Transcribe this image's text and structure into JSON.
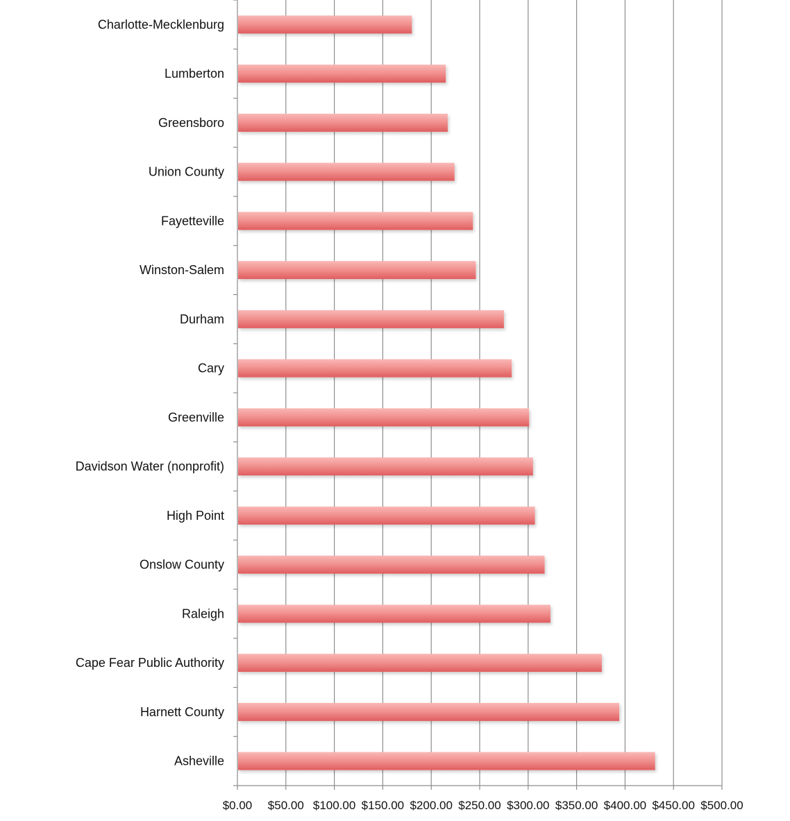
{
  "chart_data": {
    "type": "bar",
    "orientation": "horizontal",
    "categories": [
      "Charlotte-Mecklenburg",
      "Lumberton",
      "Greensboro",
      "Union County",
      "Fayetteville",
      "Winston-Salem",
      "Durham",
      "Cary",
      "Greenville",
      "Davidson Water (nonprofit)",
      "High Point",
      "Onslow County",
      "Raleigh",
      "Cape Fear Public Authority",
      "Harnett County",
      "Asheville"
    ],
    "values": [
      180,
      215,
      217,
      224,
      243,
      246,
      275,
      283,
      301,
      305,
      307,
      317,
      323,
      376,
      394,
      431
    ],
    "title": "",
    "xlabel": "",
    "ylabel": "",
    "xlim": [
      0,
      500
    ],
    "xticks": [
      0,
      50,
      100,
      150,
      200,
      250,
      300,
      350,
      400,
      450,
      500
    ],
    "xtick_labels": [
      "$0.00",
      "$50.00",
      "$100.00",
      "$150.00",
      "$200.00",
      "$250.00",
      "$300.00",
      "$350.00",
      "$400.00",
      "$450.00",
      "$500.00"
    ],
    "grid": "vertical",
    "legend": "none",
    "bar_color": "#e8686a",
    "bar_highlight_color": "#f7b4b2"
  }
}
